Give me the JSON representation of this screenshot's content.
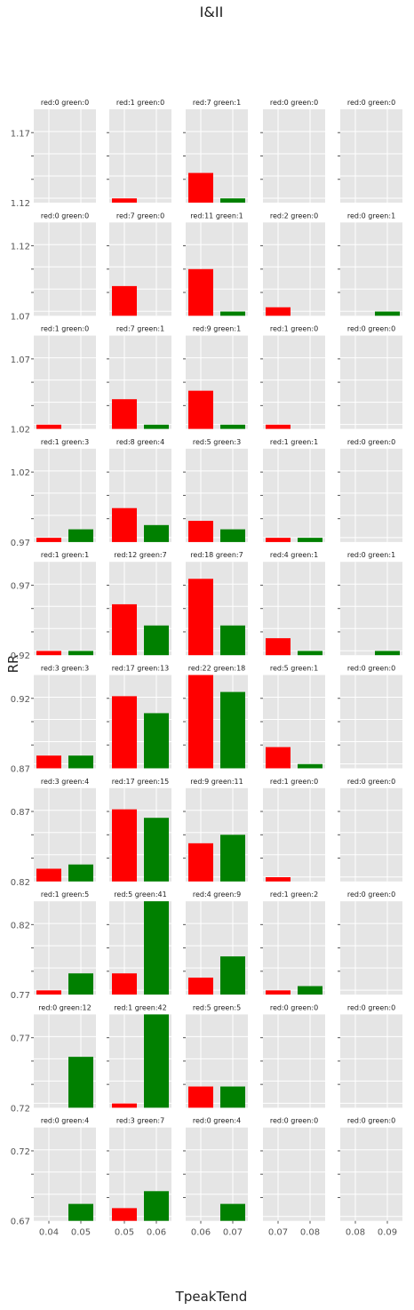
{
  "chart_data": {
    "type": "bar",
    "title": "I&II",
    "xlabel": "TpeakTend",
    "ylabel": "RR",
    "series_colors": {
      "red": "#ff0000",
      "green": "#008000"
    },
    "grid": true,
    "columns": [
      {
        "ticks": [
          "0.04",
          "0.05"
        ]
      },
      {
        "ticks": [
          "0.05",
          "0.06"
        ]
      },
      {
        "ticks": [
          "0.06",
          "0.07"
        ]
      },
      {
        "ticks": [
          "0.07",
          "0.08"
        ]
      },
      {
        "ticks": [
          "0.08",
          "0.09"
        ]
      }
    ],
    "rows": [
      {
        "yticks": [
          "1.12",
          "1.17"
        ],
        "ylim": [
          0,
          4
        ],
        "panels": [
          {
            "label": "red:0 green:0",
            "red": 0,
            "green": 0
          },
          {
            "label": "red:1 green:0",
            "red": 1,
            "green": 0
          },
          {
            "label": "red:7 green:1",
            "red": 7,
            "green": 1
          },
          {
            "label": "red:0 green:0",
            "red": 0,
            "green": 0
          },
          {
            "label": "red:0 green:0",
            "red": 0,
            "green": 0
          }
        ]
      },
      {
        "yticks": [
          "1.07",
          "1.12"
        ],
        "ylim": [
          0,
          4
        ],
        "panels": [
          {
            "label": "red:0 green:0",
            "red": 0,
            "green": 0
          },
          {
            "label": "red:7 green:0",
            "red": 7,
            "green": 0
          },
          {
            "label": "red:11 green:1",
            "red": 11,
            "green": 1
          },
          {
            "label": "red:2 green:0",
            "red": 2,
            "green": 0
          },
          {
            "label": "red:0 green:1",
            "red": 0,
            "green": 1
          }
        ]
      },
      {
        "yticks": [
          "1.02",
          "1.07"
        ],
        "ylim": [
          0,
          4
        ],
        "panels": [
          {
            "label": "red:1 green:0",
            "red": 1,
            "green": 0
          },
          {
            "label": "red:7 green:1",
            "red": 7,
            "green": 1
          },
          {
            "label": "red:9 green:1",
            "red": 9,
            "green": 1
          },
          {
            "label": "red:1 green:0",
            "red": 1,
            "green": 0
          },
          {
            "label": "red:0 green:0",
            "red": 0,
            "green": 0
          }
        ]
      },
      {
        "yticks": [
          "0.97",
          "1.02"
        ],
        "ylim": [
          0,
          4
        ],
        "panels": [
          {
            "label": "red:1 green:3",
            "red": 1,
            "green": 3
          },
          {
            "label": "red:8 green:4",
            "red": 8,
            "green": 4
          },
          {
            "label": "red:5 green:3",
            "red": 5,
            "green": 3
          },
          {
            "label": "red:1 green:1",
            "red": 1,
            "green": 1
          },
          {
            "label": "red:0 green:0",
            "red": 0,
            "green": 0
          }
        ]
      },
      {
        "yticks": [
          "0.92",
          "0.97"
        ],
        "ylim": [
          0,
          4
        ],
        "panels": [
          {
            "label": "red:1 green:1",
            "red": 1,
            "green": 1
          },
          {
            "label": "red:12 green:7",
            "red": 12,
            "green": 7
          },
          {
            "label": "red:18 green:7",
            "red": 18,
            "green": 7
          },
          {
            "label": "red:4 green:1",
            "red": 4,
            "green": 1
          },
          {
            "label": "red:0 green:1",
            "red": 0,
            "green": 1
          }
        ]
      },
      {
        "yticks": [
          "0.87",
          "0.92"
        ],
        "ylim": [
          0,
          4
        ],
        "panels": [
          {
            "label": "red:3 green:3",
            "red": 3,
            "green": 3
          },
          {
            "label": "red:17 green:13",
            "red": 17,
            "green": 13
          },
          {
            "label": "red:22 green:18",
            "red": 22,
            "green": 18
          },
          {
            "label": "red:5 green:1",
            "red": 5,
            "green": 1
          },
          {
            "label": "red:0 green:0",
            "red": 0,
            "green": 0
          }
        ]
      },
      {
        "yticks": [
          "0.82",
          "0.87"
        ],
        "ylim": [
          0,
          4
        ],
        "panels": [
          {
            "label": "red:3 green:4",
            "red": 3,
            "green": 4
          },
          {
            "label": "red:17 green:15",
            "red": 17,
            "green": 15
          },
          {
            "label": "red:9 green:11",
            "red": 9,
            "green": 11
          },
          {
            "label": "red:1 green:0",
            "red": 1,
            "green": 0
          },
          {
            "label": "red:0 green:0",
            "red": 0,
            "green": 0
          }
        ]
      },
      {
        "yticks": [
          "0.77",
          "0.82"
        ],
        "ylim": [
          0,
          4
        ],
        "panels": [
          {
            "label": "red:1 green:5",
            "red": 1,
            "green": 5
          },
          {
            "label": "red:5 green:41",
            "red": 5,
            "green": 41
          },
          {
            "label": "red:4 green:9",
            "red": 4,
            "green": 9
          },
          {
            "label": "red:1 green:2",
            "red": 1,
            "green": 2
          },
          {
            "label": "red:0 green:0",
            "red": 0,
            "green": 0
          }
        ]
      },
      {
        "yticks": [
          "0.72",
          "0.77"
        ],
        "ylim": [
          0,
          4
        ],
        "panels": [
          {
            "label": "red:0 green:12",
            "red": 0,
            "green": 12
          },
          {
            "label": "red:1 green:42",
            "red": 1,
            "green": 42
          },
          {
            "label": "red:5 green:5",
            "red": 5,
            "green": 5
          },
          {
            "label": "red:0 green:0",
            "red": 0,
            "green": 0
          },
          {
            "label": "red:0 green:0",
            "red": 0,
            "green": 0
          }
        ]
      },
      {
        "yticks": [
          "0.67",
          "0.72"
        ],
        "ylim": [
          0,
          4
        ],
        "panels": [
          {
            "label": "red:0 green:4",
            "red": 0,
            "green": 4
          },
          {
            "label": "red:3 green:7",
            "red": 3,
            "green": 7
          },
          {
            "label": "red:0 green:4",
            "red": 0,
            "green": 4
          },
          {
            "label": "red:0 green:0",
            "red": 0,
            "green": 0
          },
          {
            "label": "red:0 green:0",
            "red": 0,
            "green": 0
          }
        ]
      }
    ]
  }
}
